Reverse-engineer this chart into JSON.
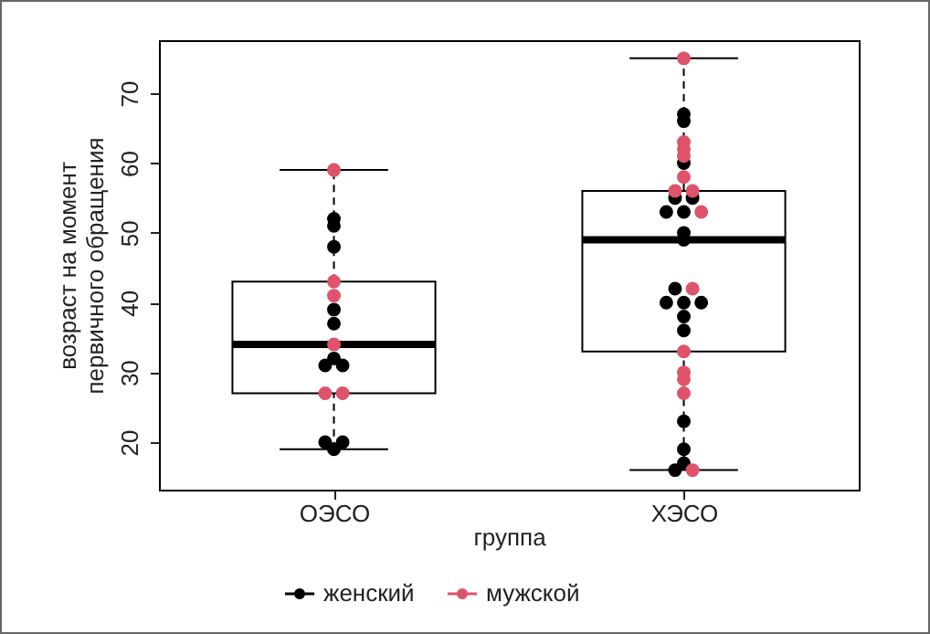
{
  "chart_data": {
    "type": "box",
    "categories": [
      "ОЭСО",
      "ХЭСО"
    ],
    "xlabel": "группа",
    "ylabel": "возраст на момент\nпервичного обращения",
    "ylim": [
      13.2,
      77.6
    ],
    "yticks": [
      20,
      30,
      40,
      50,
      60,
      70
    ],
    "grid": false,
    "legend": "bottom",
    "marker": "circle",
    "boxes": [
      {
        "low": 19,
        "q1": 27,
        "median": 34,
        "q3": 43,
        "high": 59
      },
      {
        "low": 16,
        "q1": 33,
        "median": 49,
        "q3": 56,
        "high": 75
      }
    ],
    "series": [
      {
        "name": "женский",
        "type": "scatter",
        "color": "#000000",
        "x": [
          "ОЭСО",
          "ОЭСО",
          "ОЭСО",
          "ОЭСО",
          "ОЭСО",
          "ОЭСО",
          "ОЭСО",
          "ОЭСО",
          "ОЭСО",
          "ОЭСО",
          "ОЭСО",
          "ХЭСО",
          "ХЭСО",
          "ХЭСО",
          "ХЭСО",
          "ХЭСО",
          "ХЭСО",
          "ХЭСО",
          "ХЭСО",
          "ХЭСО",
          "ХЭСО",
          "ХЭСО",
          "ХЭСО",
          "ХЭСО",
          "ХЭСО",
          "ХЭСО",
          "ХЭСО",
          "ХЭСО",
          "ХЭСО",
          "ХЭСО"
        ],
        "values": [
          52,
          51,
          48,
          39,
          37,
          32,
          31,
          31,
          20,
          20,
          19,
          67,
          66,
          60,
          55,
          55,
          53,
          53,
          50,
          49,
          42,
          40,
          40,
          40,
          38,
          36,
          23,
          19,
          17,
          16
        ]
      },
      {
        "name": "мужской",
        "type": "scatter",
        "color": "#df536b",
        "x": [
          "ОЭСО",
          "ОЭСО",
          "ОЭСО",
          "ОЭСО",
          "ОЭСО",
          "ОЭСО",
          "ХЭСО",
          "ХЭСО",
          "ХЭСО",
          "ХЭСО",
          "ХЭСО",
          "ХЭСО",
          "ХЭСО",
          "ХЭСО",
          "ХЭСО",
          "ХЭСО",
          "ХЭСО",
          "ХЭСО",
          "ХЭСО",
          "ХЭСО"
        ],
        "values": [
          59,
          43,
          41,
          34,
          27,
          27,
          75,
          63,
          62,
          61,
          58,
          56,
          56,
          53,
          42,
          33,
          30,
          29,
          27,
          16
        ]
      }
    ]
  }
}
